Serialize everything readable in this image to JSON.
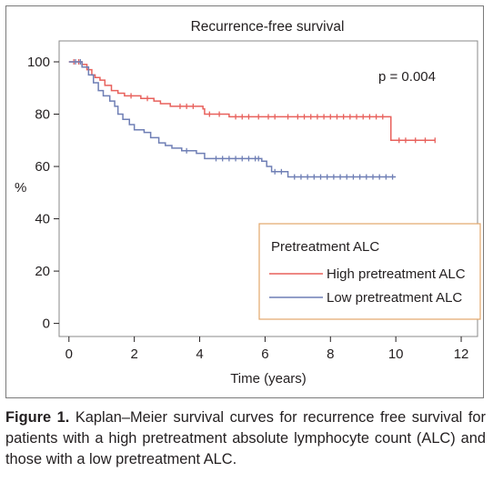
{
  "chart_data": {
    "type": "line",
    "title": "Recurrence-free survival",
    "xlabel": "Time (years)",
    "ylabel": "%",
    "xlim": [
      -0.3,
      12.5
    ],
    "ylim": [
      -5,
      108
    ],
    "x_ticks": [
      0,
      2,
      4,
      6,
      8,
      10,
      12
    ],
    "y_ticks": [
      0,
      20,
      40,
      60,
      80,
      100
    ],
    "grid": false,
    "annotation": "p = 0.004",
    "legend": {
      "title": "Pretreatment ALC",
      "placement": "bottom-right",
      "entries": [
        "High pretreatment ALC",
        "Low pretreatment ALC"
      ]
    },
    "series": [
      {
        "name": "High pretreatment ALC",
        "color": "#e8615c",
        "steps": [
          [
            0,
            100
          ],
          [
            0.25,
            100
          ],
          [
            0.4,
            99
          ],
          [
            0.55,
            97
          ],
          [
            0.7,
            95
          ],
          [
            0.8,
            94
          ],
          [
            0.95,
            93
          ],
          [
            1.1,
            91
          ],
          [
            1.3,
            89
          ],
          [
            1.5,
            88
          ],
          [
            1.7,
            87
          ],
          [
            2.2,
            86
          ],
          [
            2.6,
            85
          ],
          [
            2.8,
            84
          ],
          [
            3.1,
            83
          ],
          [
            4.1,
            82
          ],
          [
            4.15,
            80
          ],
          [
            4.9,
            79
          ],
          [
            9.8,
            79
          ],
          [
            9.85,
            70
          ],
          [
            11.2,
            70
          ]
        ],
        "censored": [
          0.15,
          0.3,
          1.9,
          2.4,
          3.4,
          3.6,
          3.8,
          4.3,
          4.6,
          5.1,
          5.3,
          5.5,
          5.8,
          6.1,
          6.3,
          6.7,
          7.0,
          7.2,
          7.4,
          7.6,
          7.8,
          8.0,
          8.2,
          8.4,
          8.6,
          8.8,
          9.0,
          9.2,
          9.4,
          9.6,
          10.1,
          10.3,
          10.6,
          10.9,
          11.2
        ]
      },
      {
        "name": "Low pretreatment ALC",
        "color": "#6f7fb5",
        "steps": [
          [
            0,
            100
          ],
          [
            0.4,
            98
          ],
          [
            0.6,
            95
          ],
          [
            0.75,
            92
          ],
          [
            0.9,
            89
          ],
          [
            1.05,
            87
          ],
          [
            1.25,
            85
          ],
          [
            1.4,
            83
          ],
          [
            1.5,
            80
          ],
          [
            1.65,
            78
          ],
          [
            1.85,
            76
          ],
          [
            2.0,
            74
          ],
          [
            2.3,
            73
          ],
          [
            2.5,
            71
          ],
          [
            2.75,
            69
          ],
          [
            2.95,
            68
          ],
          [
            3.15,
            67
          ],
          [
            3.45,
            66
          ],
          [
            3.9,
            65
          ],
          [
            4.15,
            63
          ],
          [
            5.9,
            62
          ],
          [
            6.05,
            60
          ],
          [
            6.2,
            58
          ],
          [
            6.7,
            56
          ],
          [
            10.0,
            56
          ]
        ],
        "censored": [
          0.2,
          0.35,
          3.6,
          4.5,
          4.7,
          4.9,
          5.1,
          5.3,
          5.5,
          5.7,
          5.8,
          6.3,
          6.5,
          6.9,
          7.1,
          7.3,
          7.5,
          7.7,
          7.9,
          8.1,
          8.3,
          8.5,
          8.7,
          8.9,
          9.1,
          9.3,
          9.5,
          9.7,
          9.9
        ]
      }
    ]
  },
  "caption": {
    "label": "Figure 1.",
    "text": " Kaplan–Meier survival curves for recurrence free survival for patients with a high pretreatment absolute lymphocyte count (ALC) and those with a low pretreatment ALC."
  }
}
